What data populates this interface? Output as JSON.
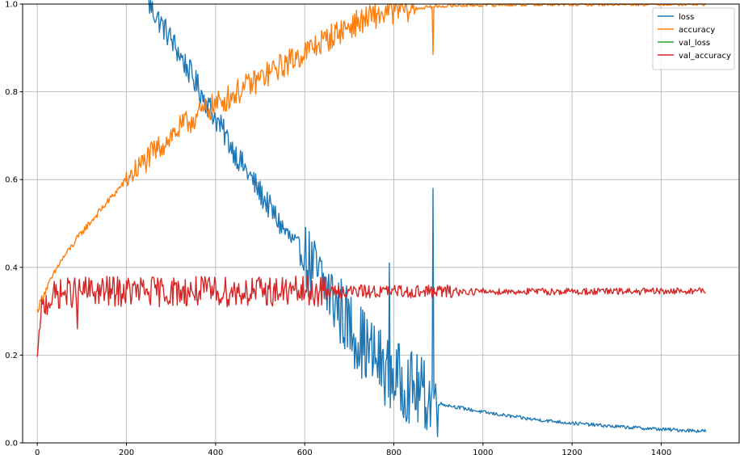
{
  "chart_data": {
    "type": "line",
    "title": "",
    "xlabel": "",
    "ylabel": "",
    "xlim": [
      -33,
      1575
    ],
    "ylim": [
      0.0,
      1.0
    ],
    "grid": true,
    "legend_position": "top-right",
    "x_ticks": [
      0,
      200,
      400,
      600,
      800,
      1000,
      1200,
      1400
    ],
    "y_ticks": [
      0.0,
      0.2,
      0.4,
      0.6,
      0.8,
      1.0
    ],
    "x_tick_labels": [
      "0",
      "200",
      "400",
      "600",
      "800",
      "1000",
      "1200",
      "1400"
    ],
    "y_tick_labels": [
      "0.0",
      "0.2",
      "0.4",
      "0.6",
      "0.8",
      "1.0"
    ],
    "series": [
      {
        "name": "loss",
        "color": "#1f77b4",
        "x": [
          250,
          300,
          350,
          400,
          450,
          500,
          550,
          600,
          650,
          700,
          750,
          800,
          850,
          900,
          1000,
          1100,
          1200,
          1300,
          1400,
          1500
        ],
        "y": [
          1.0,
          0.92,
          0.83,
          0.74,
          0.65,
          0.57,
          0.49,
          0.42,
          0.35,
          0.27,
          0.2,
          0.15,
          0.12,
          0.09,
          0.07,
          0.055,
          0.045,
          0.037,
          0.031,
          0.027
        ]
      },
      {
        "name": "accuracy",
        "color": "#ff7f0e",
        "x": [
          0,
          10,
          50,
          100,
          150,
          200,
          250,
          300,
          350,
          400,
          450,
          500,
          550,
          600,
          650,
          700,
          750,
          800,
          850,
          900,
          950,
          1000,
          1100,
          1200,
          1300,
          1400,
          1500
        ],
        "y": [
          0.3,
          0.33,
          0.41,
          0.48,
          0.54,
          0.6,
          0.65,
          0.7,
          0.74,
          0.77,
          0.8,
          0.83,
          0.86,
          0.89,
          0.92,
          0.95,
          0.97,
          0.985,
          0.99,
          0.995,
          0.997,
          0.998,
          0.999,
          0.999,
          1.0,
          1.0,
          1.0
        ]
      },
      {
        "name": "val_loss",
        "color": "#2ca02c",
        "x": [],
        "y": []
      },
      {
        "name": "val_accuracy",
        "color": "#d62728",
        "x": [
          0,
          5,
          10,
          20,
          30,
          50,
          100,
          200,
          300,
          400,
          500,
          600,
          700,
          800,
          900,
          1000,
          1100,
          1200,
          1300,
          1400,
          1500
        ],
        "y": [
          0.19,
          0.26,
          0.3,
          0.32,
          0.33,
          0.34,
          0.345,
          0.345,
          0.345,
          0.345,
          0.345,
          0.345,
          0.345,
          0.345,
          0.345,
          0.345,
          0.345,
          0.345,
          0.345,
          0.345,
          0.347
        ]
      }
    ],
    "annotations": [
      {
        "series": "loss",
        "x": 790,
        "y": 0.41
      },
      {
        "series": "loss",
        "x": 888,
        "y": 0.58
      },
      {
        "series": "accuracy",
        "x": 888,
        "y": 0.885
      },
      {
        "series": "val_accuracy",
        "x": 90,
        "y": 0.26
      }
    ]
  }
}
